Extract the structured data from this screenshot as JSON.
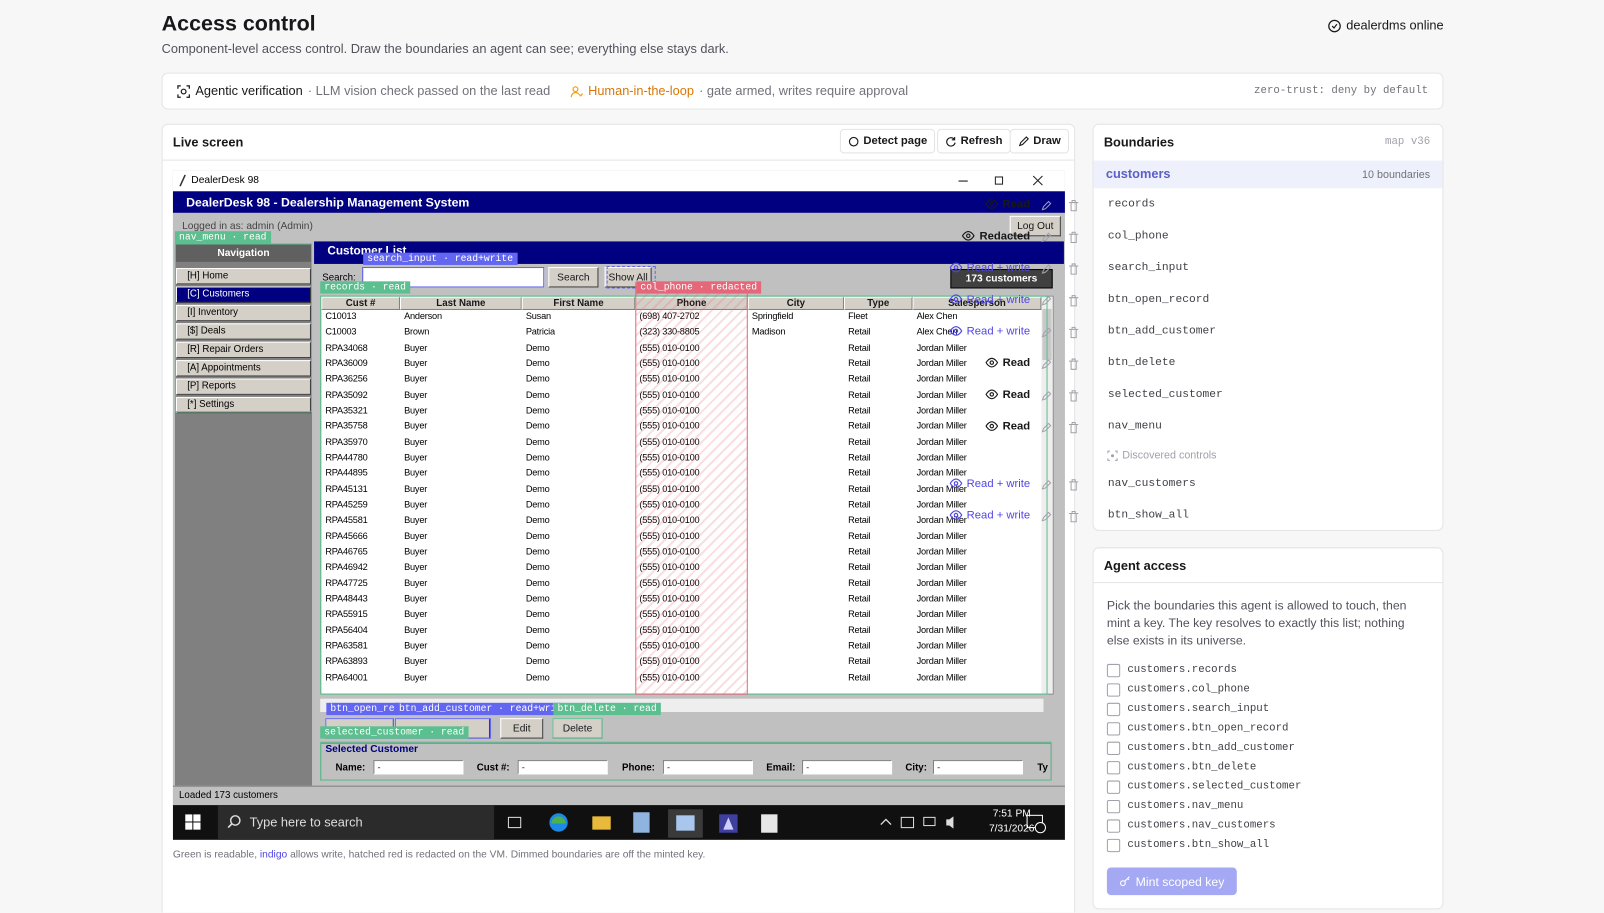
{
  "header": {
    "title": "Access control",
    "subtitle": "Component-level access control. Draw the boundaries an agent can see; everything else stays dark.",
    "status": "dealerdms online"
  },
  "banner": {
    "verification": "Agentic verification",
    "verification_note": "· LLM vision check passed on the last read",
    "hitl": "Human-in-the-loop",
    "hitl_note": "· gate armed, writes require approval",
    "policy": "zero-trust: deny by default"
  },
  "live": {
    "title": "Live screen",
    "buttons": [
      "Detect page",
      "Refresh",
      "Draw"
    ],
    "footnote": [
      "Green is readable,",
      "indigo",
      "allows write, hatched red is redacted on the VM. Dimmed boundaries are off the minted key."
    ]
  },
  "window": {
    "title": "DealerDesk 98",
    "app_title": "DealerDesk 98 - Dealership Management System",
    "logged_in": "Logged in as: admin (Admin)",
    "logout": "Log Out",
    "nav_heading": "Navigation",
    "nav": [
      "[H] Home",
      "[C] Customers",
      "[I] Inventory",
      "[$] Deals",
      "[R] Repair Orders",
      "[A] Appointments",
      "[P] Reports",
      "[*] Settings"
    ],
    "list_title": "Customer List",
    "search_label": "Search:",
    "search_button": "Search",
    "show_all": "Show All",
    "count": "173 customers",
    "columns": [
      "Cust #",
      "Last Name",
      "First Name",
      "Phone",
      "City",
      "Type",
      "Salesperson"
    ],
    "rows": [
      [
        "C10013",
        "Anderson",
        "Susan",
        "(698) 407-2702",
        "Springfield",
        "Fleet",
        "Alex Chen"
      ],
      [
        "C10003",
        "Brown",
        "Patricia",
        "(323) 330-8805",
        "Madison",
        "Retail",
        "Alex Chen"
      ],
      [
        "RPA34068",
        "Buyer",
        "Demo",
        "(555) 010-0100",
        null,
        "Retail",
        "Jordan Miller"
      ],
      [
        "RPA36009",
        "Buyer",
        "Demo",
        "(555) 010-0100",
        null,
        "Retail",
        "Jordan Miller"
      ],
      [
        "RPA36256",
        "Buyer",
        "Demo",
        "(555) 010-0100",
        null,
        "Retail",
        "Jordan Miller"
      ],
      [
        "RPA35092",
        "Buyer",
        "Demo",
        "(555) 010-0100",
        null,
        "Retail",
        "Jordan Miller"
      ],
      [
        "RPA35321",
        "Buyer",
        "Demo",
        "(555) 010-0100",
        null,
        "Retail",
        "Jordan Miller"
      ],
      [
        "RPA35758",
        "Buyer",
        "Demo",
        "(555) 010-0100",
        null,
        "Retail",
        "Jordan Miller"
      ],
      [
        "RPA35970",
        "Buyer",
        "Demo",
        "(555) 010-0100",
        null,
        "Retail",
        "Jordan Miller"
      ],
      [
        "RPA44780",
        "Buyer",
        "Demo",
        "(555) 010-0100",
        null,
        "Retail",
        "Jordan Miller"
      ],
      [
        "RPA44895",
        "Buyer",
        "Demo",
        "(555) 010-0100",
        null,
        "Retail",
        "Jordan Miller"
      ],
      [
        "RPA45131",
        "Buyer",
        "Demo",
        "(555) 010-0100",
        null,
        "Retail",
        "Jordan Miller"
      ],
      [
        "RPA45259",
        "Buyer",
        "Demo",
        "(555) 010-0100",
        null,
        "Retail",
        "Jordan Miller"
      ],
      [
        "RPA45581",
        "Buyer",
        "Demo",
        "(555) 010-0100",
        null,
        "Retail",
        "Jordan Miller"
      ],
      [
        "RPA45666",
        "Buyer",
        "Demo",
        "(555) 010-0100",
        null,
        "Retail",
        "Jordan Miller"
      ],
      [
        "RPA46765",
        "Buyer",
        "Demo",
        "(555) 010-0100",
        null,
        "Retail",
        "Jordan Miller"
      ],
      [
        "RPA46942",
        "Buyer",
        "Demo",
        "(555) 010-0100",
        null,
        "Retail",
        "Jordan Miller"
      ],
      [
        "RPA47725",
        "Buyer",
        "Demo",
        "(555) 010-0100",
        null,
        "Retail",
        "Jordan Miller"
      ],
      [
        "RPA48443",
        "Buyer",
        "Demo",
        "(555) 010-0100",
        null,
        "Retail",
        "Jordan Miller"
      ],
      [
        "RPA55915",
        "Buyer",
        "Demo",
        "(555) 010-0100",
        null,
        "Retail",
        "Jordan Miller"
      ],
      [
        "RPA56404",
        "Buyer",
        "Demo",
        "(555) 010-0100",
        null,
        "Retail",
        "Jordan Miller"
      ],
      [
        "RPA63581",
        "Buyer",
        "Demo",
        "(555) 010-0100",
        null,
        "Retail",
        "Jordan Miller"
      ],
      [
        "RPA63893",
        "Buyer",
        "Demo",
        "(555) 010-0100",
        null,
        "Retail",
        "Jordan Miller"
      ],
      [
        "RPA64001",
        "Buyer",
        "Demo",
        "(555) 010-0100",
        null,
        "Retail",
        "Jordan Miller"
      ]
    ],
    "buttons": [
      "Edit",
      "Delete"
    ],
    "selected_title": "Selected Customer",
    "fields": [
      {
        "label": "Name:",
        "value": "-"
      },
      {
        "label": "Cust #:",
        "value": "-"
      },
      {
        "label": "Phone:",
        "value": "-"
      },
      {
        "label": "Email:",
        "value": "-"
      },
      {
        "label": "City:",
        "value": "-"
      }
    ],
    "field_cut": "Ty",
    "status": "Loaded 173 customers",
    "taskbar_search": "Type here to search",
    "time": "7:51 PM",
    "date": "7/31/2026",
    "overlays": [
      {
        "label": "nav_menu · read",
        "color": "#5cbf8f"
      },
      {
        "label": "search_input · read+write",
        "color": "#6366f1"
      },
      {
        "label": "records · read",
        "color": "#5cbf8f"
      },
      {
        "label": "col_phone · redacted",
        "color": "#e5677a"
      },
      {
        "label": "btn_open_re",
        "color": "#6366f1"
      },
      {
        "label": "btn_add_customer · read+wri",
        "color": "#6366f1"
      },
      {
        "label": "btn_delete · read",
        "color": "#5cbf8f"
      },
      {
        "label": "selected_customer · read",
        "color": "#5cbf8f"
      }
    ]
  },
  "boundaries": {
    "title": "Boundaries",
    "map": "map v36",
    "group": "customers",
    "count": "10 boundaries",
    "items": [
      {
        "name": "records",
        "access": "Read",
        "color": "#18181b"
      },
      {
        "name": "col_phone",
        "access": "Redacted",
        "color": "#18181b"
      },
      {
        "name": "search_input",
        "access": "Read + write",
        "color": "#4f46e5"
      },
      {
        "name": "btn_open_record",
        "access": "Read + write",
        "color": "#4f46e5"
      },
      {
        "name": "btn_add_customer",
        "access": "Read + write",
        "color": "#4f46e5"
      },
      {
        "name": "btn_delete",
        "access": "Read",
        "color": "#18181b"
      },
      {
        "name": "selected_customer",
        "access": "Read",
        "color": "#18181b"
      },
      {
        "name": "nav_menu",
        "access": "Read",
        "color": "#18181b"
      }
    ],
    "discovered_heading": "Discovered controls",
    "discovered": [
      {
        "name": "nav_customers",
        "access": "Read + write",
        "color": "#4f46e5"
      },
      {
        "name": "btn_show_all",
        "access": "Read + write",
        "color": "#4f46e5"
      }
    ]
  },
  "agent": {
    "title": "Agent access",
    "description": "Pick the boundaries this agent is allowed to touch, then mint a key. The key resolves to exactly this list; nothing else exists in its universe.",
    "keys": [
      "customers.records",
      "customers.col_phone",
      "customers.search_input",
      "customers.btn_open_record",
      "customers.btn_add_customer",
      "customers.btn_delete",
      "customers.selected_customer",
      "customers.nav_menu",
      "customers.nav_customers",
      "customers.btn_show_all"
    ],
    "button": "Mint scoped key"
  }
}
